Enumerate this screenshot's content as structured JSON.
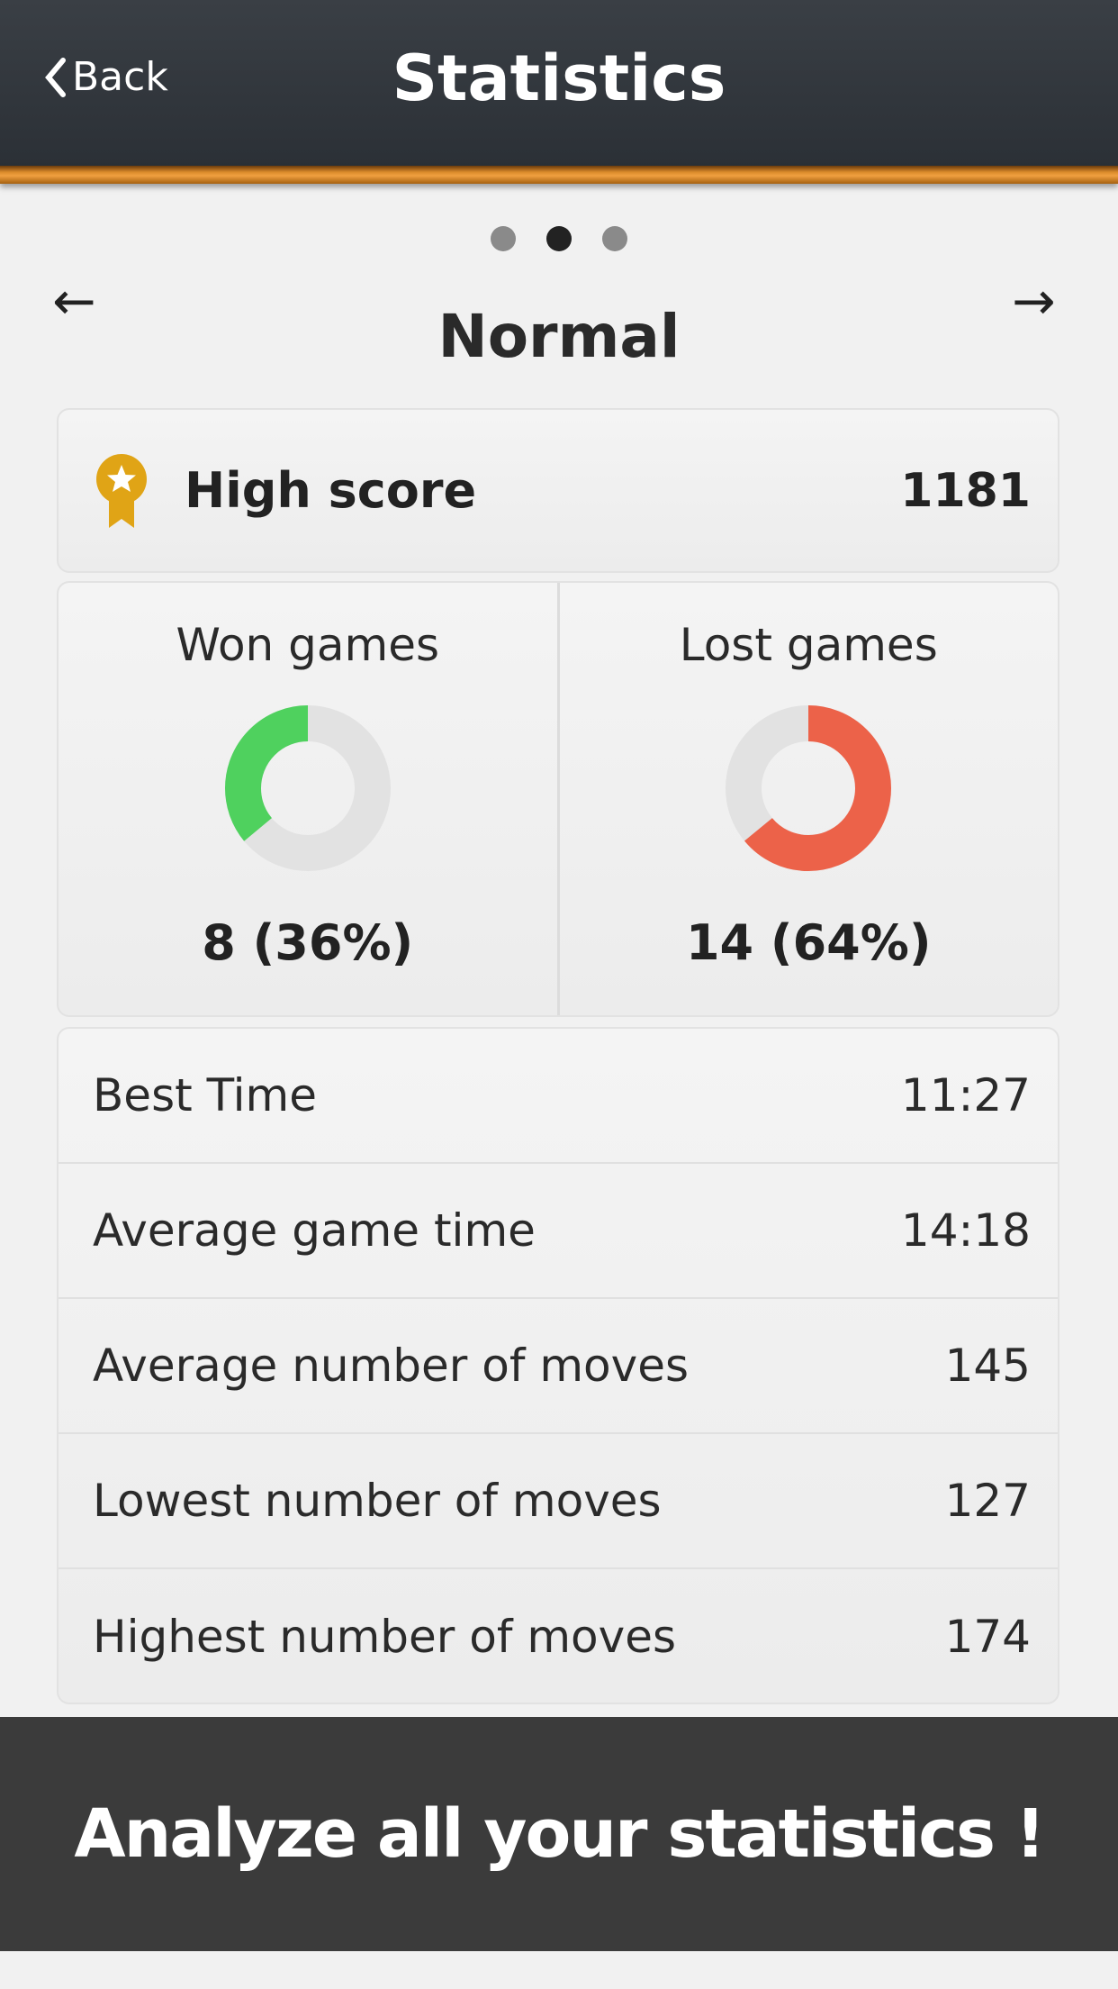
{
  "header": {
    "back_label": "Back",
    "title": "Statistics"
  },
  "pager": {
    "pages": 3,
    "active": 2
  },
  "mode": {
    "title": "Normal"
  },
  "high_score": {
    "label": "High score",
    "value": "1181",
    "icon": "medal-icon"
  },
  "games": {
    "won": {
      "label": "Won games",
      "value": "8 (36%)",
      "percent": 36,
      "color": "#4fd15e"
    },
    "lost": {
      "label": "Lost games",
      "value": "14 (64%)",
      "percent": 64,
      "color": "#ec6249"
    }
  },
  "stats": [
    {
      "label": "Best Time",
      "value": "11:27"
    },
    {
      "label": "Average game time",
      "value": "14:18"
    },
    {
      "label": "Average number of moves",
      "value": "145"
    },
    {
      "label": "Lowest number of moves",
      "value": "127"
    },
    {
      "label": "Highest number of moves",
      "value": "174"
    }
  ],
  "banner": {
    "text": "Analyze all your statistics !"
  }
}
